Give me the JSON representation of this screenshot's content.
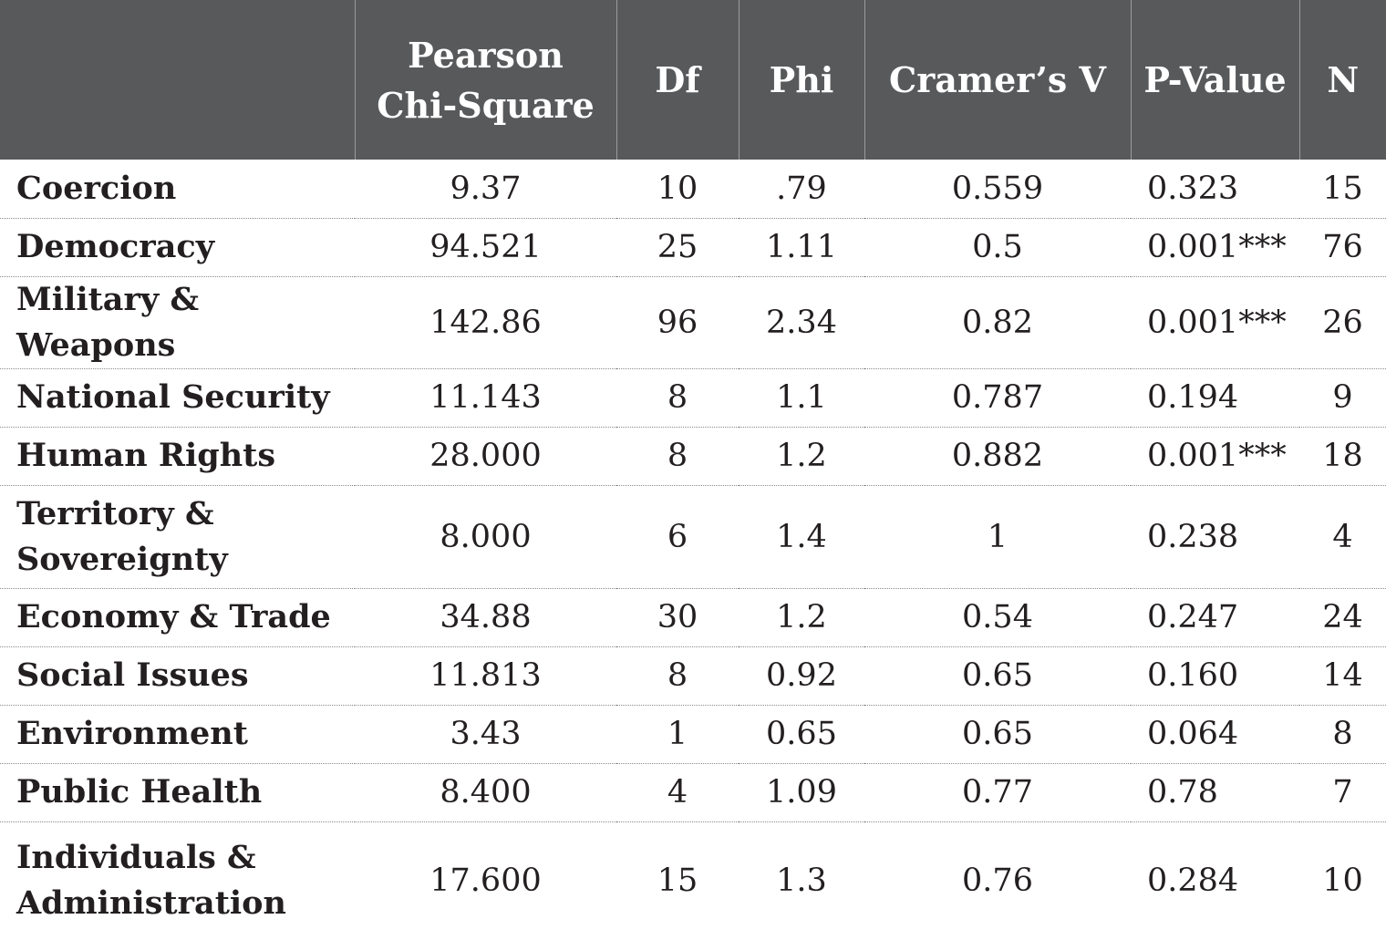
{
  "table": {
    "headers": [
      "",
      "Pearson Chi-Square",
      "Df",
      "Phi",
      "Cramer’s V",
      "P-Value",
      "N"
    ],
    "rows": [
      {
        "category": "Coercion",
        "chi_square": "9.37",
        "df": "10",
        "phi": ".79",
        "cramers_v": "0.559",
        "p_value": "0.323",
        "n": "15"
      },
      {
        "category": "Democracy",
        "chi_square": "94.521",
        "df": "25",
        "phi": "1.11",
        "cramers_v": "0.5",
        "p_value": "0.001***",
        "n": "76"
      },
      {
        "category": "Military & Weapons",
        "chi_square": "142.86",
        "df": "96",
        "phi": "2.34",
        "cramers_v": "0.82",
        "p_value": "0.001***",
        "n": "26"
      },
      {
        "category": "National Security",
        "chi_square": "11.143",
        "df": "8",
        "phi": "1.1",
        "cramers_v": "0.787",
        "p_value": "0.194",
        "n": "9"
      },
      {
        "category": "Human Rights",
        "chi_square": "28.000",
        "df": "8",
        "phi": "1.2",
        "cramers_v": "0.882",
        "p_value": "0.001***",
        "n": "18"
      },
      {
        "category": "Territory & Sovereignty",
        "chi_square": "8.000",
        "df": "6",
        "phi": "1.4",
        "cramers_v": "1",
        "p_value": "0.238",
        "n": "4"
      },
      {
        "category": "Economy & Trade",
        "chi_square": "34.88",
        "df": "30",
        "phi": "1.2",
        "cramers_v": "0.54",
        "p_value": "0.247",
        "n": "24"
      },
      {
        "category": "Social Issues",
        "chi_square": "11.813",
        "df": "8",
        "phi": "0.92",
        "cramers_v": "0.65",
        "p_value": "0.160",
        "n": "14"
      },
      {
        "category": "Environment",
        "chi_square": "3.43",
        "df": "1",
        "phi": "0.65",
        "cramers_v": "0.65",
        "p_value": "0.064",
        "n": "8"
      },
      {
        "category": "Public Health",
        "chi_square": "8.400",
        "df": "4",
        "phi": "1.09",
        "cramers_v": "0.77",
        "p_value": "0.78",
        "n": "7"
      },
      {
        "category": "Individuals & Administration",
        "chi_square": "17.600",
        "df": "15",
        "phi": "1.3",
        "cramers_v": "0.76",
        "p_value": "0.284",
        "n": "10"
      }
    ]
  },
  "colors": {
    "header_bg": "#58595b",
    "header_text": "#ffffff",
    "body_text": "#231f20",
    "row_divider": "#8a8a8a"
  }
}
